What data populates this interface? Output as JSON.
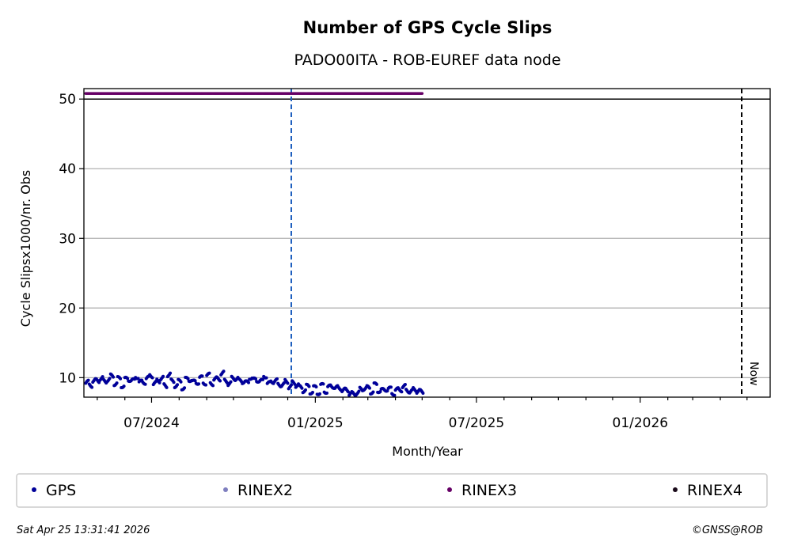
{
  "chart_data": {
    "type": "scatter",
    "title": "Number of GPS Cycle Slips",
    "subtitle": "PADO00ITA - ROB-EUREF data node",
    "xlabel": "Month/Year",
    "ylabel": "Cycle Slipsx1000/nr. Obs",
    "xlim": [
      "2024-04-16",
      "2026-05-27"
    ],
    "ylim": [
      7.2,
      51.5
    ],
    "x_ticks": [
      {
        "date": "2024-07-01",
        "label": "07/2024"
      },
      {
        "date": "2025-01-01",
        "label": "01/2025"
      },
      {
        "date": "2025-07-01",
        "label": "07/2025"
      },
      {
        "date": "2026-01-01",
        "label": "01/2026"
      }
    ],
    "y_ticks": [
      10,
      20,
      30,
      40,
      50
    ],
    "grid": "horizontal",
    "reference_lines": [
      {
        "type": "horizontal",
        "y": 50,
        "color": "#000000",
        "style": "solid"
      },
      {
        "type": "vertical",
        "date": "2024-12-05",
        "color": "#1f5fbf",
        "style": "dashed"
      },
      {
        "type": "vertical",
        "date": "2026-04-25",
        "color": "#000000",
        "style": "dashed",
        "label": "Now"
      }
    ],
    "series": [
      {
        "name": "GPS",
        "color": "#000099",
        "start": "2024-04-18",
        "step_days": 4,
        "values": [
          9.2,
          9.0,
          9.5,
          9.6,
          9.9,
          9.4,
          9.8,
          10.1,
          9.3,
          9.7,
          9.0,
          9.6,
          9.9,
          9.4,
          10.3,
          9.2,
          9.5,
          9.8,
          10.4,
          9.1,
          9.6,
          9.9,
          8.8,
          10.5,
          9.4,
          9.0,
          9.3,
          8.7,
          9.6,
          9.9,
          9.2,
          9.5,
          9.8,
          9.4,
          10.2,
          9.3,
          9.7,
          9.9,
          10.6,
          9.5,
          9.2,
          9.8,
          10.0,
          9.4,
          9.6,
          9.1,
          10.2,
          9.5,
          9.8,
          9.3,
          10.4,
          9.0,
          9.6,
          9.4,
          9.1,
          8.9,
          9.5,
          8.7,
          9.2,
          9.0,
          8.5,
          8.3,
          8.6,
          8.1,
          8.4,
          8.0,
          8.7,
          8.2,
          8.5,
          8.9,
          8.4,
          8.6,
          8.1,
          8.3,
          7.7,
          7.6,
          7.9,
          8.2,
          8.6,
          8.4,
          8.1,
          8.8,
          8.3,
          8.0,
          8.5,
          8.2,
          7.9,
          8.1,
          8.4,
          8.6,
          8.2,
          8.0,
          8.3,
          8.1,
          7.9
        ]
      },
      {
        "name": "RINEX2",
        "color": "#7f7fbf",
        "values": []
      },
      {
        "name": "RINEX3",
        "color": "#660066",
        "start": "2024-04-18",
        "end": "2025-05-01",
        "constant": 50.8
      },
      {
        "name": "RINEX4",
        "color": "#1a0a1a",
        "values": []
      }
    ],
    "legend": "bottom"
  },
  "footer": {
    "timestamp": "Sat Apr 25 13:31:41 2026",
    "copyright": "©GNSS@ROB"
  }
}
